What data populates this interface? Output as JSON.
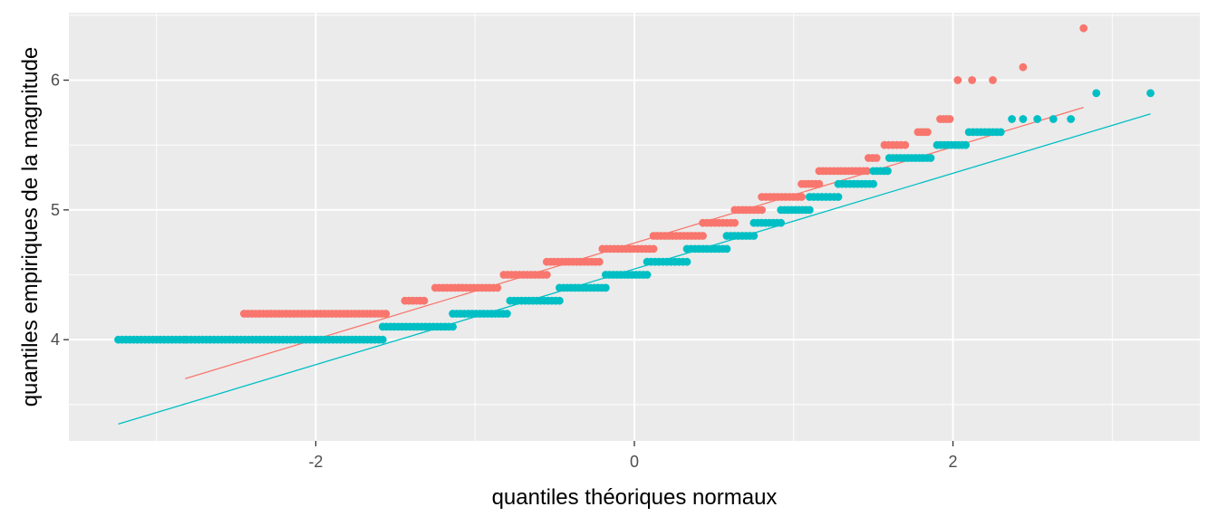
{
  "chart_data": {
    "type": "scatter",
    "subtype": "qq-plot",
    "title": "",
    "xlabel": "quantiles théoriques normaux",
    "ylabel": "quantiles empiriques de la magnitude",
    "xlim": [
      -3.55,
      3.55
    ],
    "ylim": [
      3.22,
      6.52
    ],
    "x_ticks": [
      -2,
      0,
      2
    ],
    "x_tick_labels": [
      "-2",
      "0",
      "2"
    ],
    "y_ticks": [
      4,
      5,
      6
    ],
    "y_tick_labels": [
      "4",
      "5",
      "6"
    ],
    "grid": true,
    "legend": "none",
    "background_color": "#EBEBEB",
    "grid_color": "#FFFFFF",
    "series": [
      {
        "color": "#F8766D",
        "steps": [
          {
            "y": 4.0,
            "x_start": -2.82,
            "x_end": -2.82
          },
          {
            "y": 4.2,
            "x_start": -2.45,
            "x_end": -1.56
          },
          {
            "y": 4.3,
            "x_start": -1.44,
            "x_end": -1.32
          },
          {
            "y": 4.4,
            "x_start": -1.25,
            "x_end": -0.86
          },
          {
            "y": 4.5,
            "x_start": -0.82,
            "x_end": -0.55
          },
          {
            "y": 4.6,
            "x_start": -0.55,
            "x_end": -0.22
          },
          {
            "y": 4.7,
            "x_start": -0.2,
            "x_end": 0.12
          },
          {
            "y": 4.8,
            "x_start": 0.12,
            "x_end": 0.43
          },
          {
            "y": 4.9,
            "x_start": 0.43,
            "x_end": 0.63
          },
          {
            "y": 5.0,
            "x_start": 0.63,
            "x_end": 0.8
          },
          {
            "y": 5.1,
            "x_start": 0.8,
            "x_end": 1.05
          },
          {
            "y": 5.2,
            "x_start": 1.05,
            "x_end": 1.16
          },
          {
            "y": 5.3,
            "x_start": 1.16,
            "x_end": 1.46
          },
          {
            "y": 5.4,
            "x_start": 1.47,
            "x_end": 1.52
          },
          {
            "y": 5.5,
            "x_start": 1.57,
            "x_end": 1.7
          },
          {
            "y": 5.6,
            "x_start": 1.78,
            "x_end": 1.84
          },
          {
            "y": 5.7,
            "x_start": 1.92,
            "x_end": 1.98
          }
        ],
        "points": [
          {
            "x": 2.03,
            "y": 6.0
          },
          {
            "x": 2.12,
            "y": 6.0
          },
          {
            "x": 2.25,
            "y": 6.0
          },
          {
            "x": 2.44,
            "y": 6.1
          },
          {
            "x": 2.82,
            "y": 6.4
          }
        ],
        "reference_line": {
          "x": [
            -2.82,
            2.82
          ],
          "y": [
            3.7,
            5.79
          ]
        }
      },
      {
        "color": "#00BFC4",
        "steps": [
          {
            "y": 4.0,
            "x_start": -3.24,
            "x_end": -1.58
          },
          {
            "y": 4.1,
            "x_start": -1.58,
            "x_end": -1.14
          },
          {
            "y": 4.2,
            "x_start": -1.14,
            "x_end": -0.8
          },
          {
            "y": 4.3,
            "x_start": -0.78,
            "x_end": -0.47
          },
          {
            "y": 4.4,
            "x_start": -0.47,
            "x_end": -0.18
          },
          {
            "y": 4.5,
            "x_start": -0.18,
            "x_end": 0.08
          },
          {
            "y": 4.6,
            "x_start": 0.08,
            "x_end": 0.33
          },
          {
            "y": 4.7,
            "x_start": 0.33,
            "x_end": 0.58
          },
          {
            "y": 4.8,
            "x_start": 0.58,
            "x_end": 0.75
          },
          {
            "y": 4.9,
            "x_start": 0.75,
            "x_end": 0.92
          },
          {
            "y": 5.0,
            "x_start": 0.92,
            "x_end": 1.1
          },
          {
            "y": 5.1,
            "x_start": 1.1,
            "x_end": 1.28
          },
          {
            "y": 5.2,
            "x_start": 1.28,
            "x_end": 1.5
          },
          {
            "y": 5.3,
            "x_start": 1.5,
            "x_end": 1.59
          },
          {
            "y": 5.4,
            "x_start": 1.6,
            "x_end": 1.86
          },
          {
            "y": 5.5,
            "x_start": 1.9,
            "x_end": 2.08
          },
          {
            "y": 5.6,
            "x_start": 2.1,
            "x_end": 2.3
          }
        ],
        "points": [
          {
            "x": 2.37,
            "y": 5.7
          },
          {
            "x": 2.44,
            "y": 5.7
          },
          {
            "x": 2.53,
            "y": 5.7
          },
          {
            "x": 2.63,
            "y": 5.7
          },
          {
            "x": 2.74,
            "y": 5.7
          },
          {
            "x": 2.9,
            "y": 5.9
          },
          {
            "x": 3.24,
            "y": 5.9
          }
        ],
        "reference_line": {
          "x": [
            -3.24,
            3.24
          ],
          "y": [
            3.35,
            5.74
          ]
        }
      }
    ]
  }
}
